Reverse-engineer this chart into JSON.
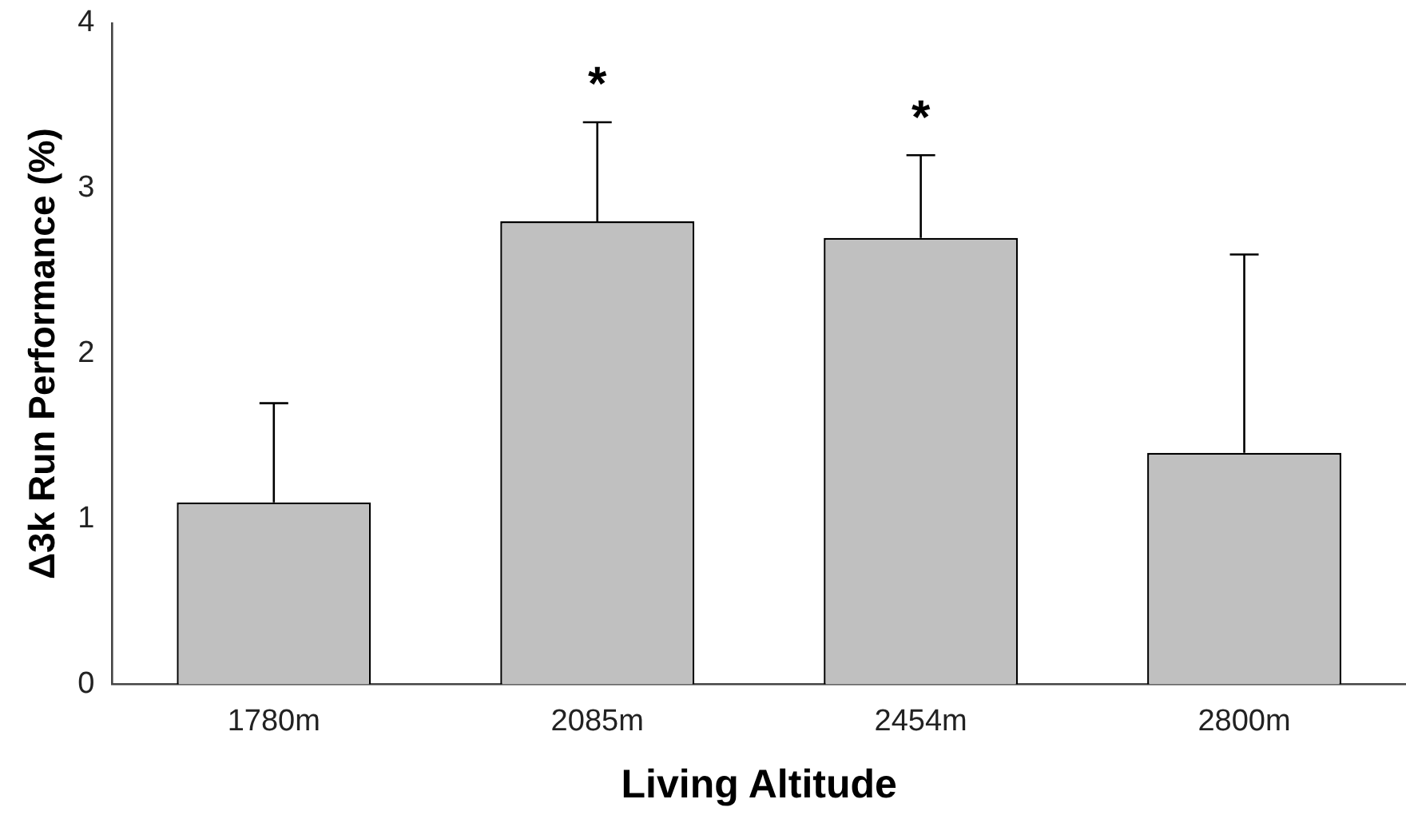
{
  "chart_data": {
    "type": "bar",
    "xlabel": "Living Altitude",
    "ylabel": "Δ3k Run Performance (%)",
    "categories": [
      "1780m",
      "2085m",
      "2454m",
      "2800m"
    ],
    "values": [
      1.1,
      2.8,
      2.7,
      1.4
    ],
    "color": "#c0c0c0",
    "errors": [
      [
        1.1,
        1.7
      ],
      [
        2.8,
        3.4
      ],
      [
        2.7,
        3.2
      ],
      [
        1.4,
        2.6
      ]
    ],
    "ylim": [
      0,
      4
    ],
    "yticks": [
      0,
      1,
      2,
      3,
      4
    ],
    "grid": false,
    "legend": false,
    "annotations": [
      "*",
      "*"
    ]
  }
}
